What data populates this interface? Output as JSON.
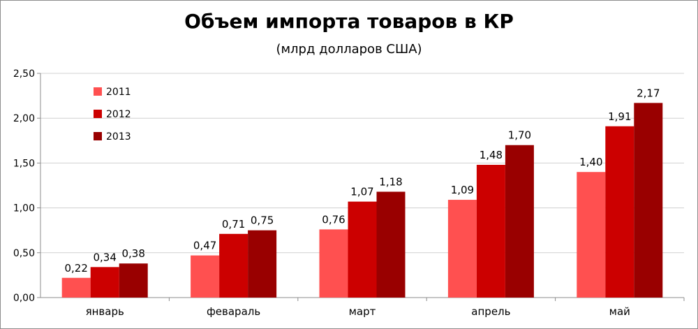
{
  "chart_data": {
    "type": "bar",
    "title": "Объем импорта товаров в КР",
    "subtitle": "(млрд долларов США)",
    "categories": [
      "январь",
      "феварaль",
      "март",
      "апрель",
      "май"
    ],
    "series": [
      {
        "name": "2011",
        "color": "#ff5050",
        "values": [
          0.22,
          0.47,
          0.76,
          1.09,
          1.4
        ],
        "labels": [
          "0,22",
          "0,47",
          "0,76",
          "1,09",
          "1,40"
        ]
      },
      {
        "name": "2012",
        "color": "#cc0000",
        "values": [
          0.34,
          0.71,
          1.07,
          1.48,
          1.91
        ],
        "labels": [
          "0,34",
          "0,71",
          "1,07",
          "1,48",
          "1,91"
        ]
      },
      {
        "name": "2013",
        "color": "#990000",
        "values": [
          0.38,
          0.75,
          1.18,
          1.7,
          2.17
        ],
        "labels": [
          "0,38",
          "0,75",
          "1,18",
          "1,70",
          "2,17"
        ]
      }
    ],
    "ylim": [
      0,
      2.5
    ],
    "yticks": [
      0,
      0.5,
      1.0,
      1.5,
      2.0,
      2.5
    ],
    "ytick_labels": [
      "0,00",
      "0,50",
      "1,00",
      "1,50",
      "2,00",
      "2,50"
    ],
    "grid": true,
    "legend_position": "top-left"
  }
}
